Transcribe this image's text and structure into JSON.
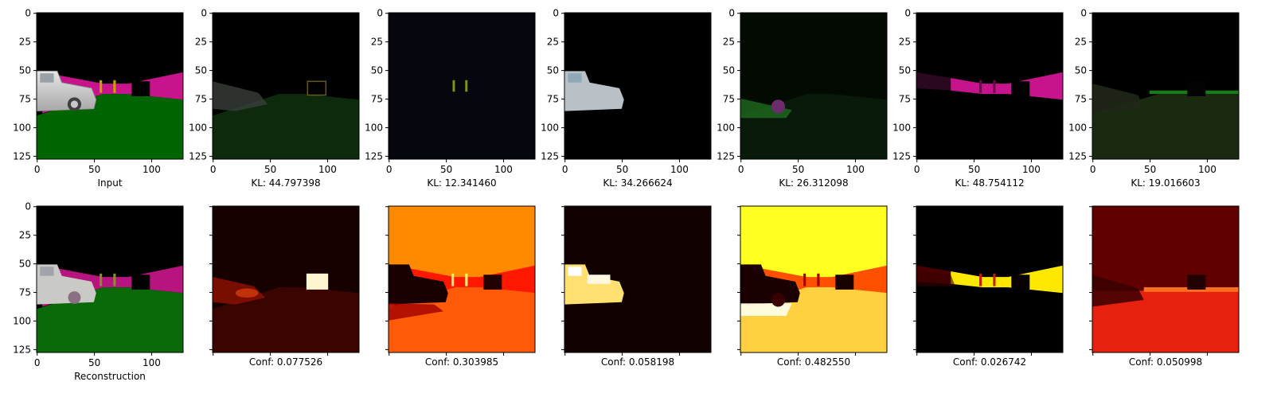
{
  "tick_values": [
    "0",
    "25",
    "50",
    "75",
    "100",
    "125"
  ],
  "x_tick_values": [
    "0",
    "50",
    "100"
  ],
  "top_row": [
    {
      "caption": "Input",
      "scene": "input"
    },
    {
      "caption": "KL: 44.797398",
      "scene": "slot1"
    },
    {
      "caption": "KL: 12.341460",
      "scene": "slot2"
    },
    {
      "caption": "KL: 34.266624",
      "scene": "slot3"
    },
    {
      "caption": "KL: 26.312098",
      "scene": "slot4"
    },
    {
      "caption": "KL: 48.754112",
      "scene": "slot5"
    },
    {
      "caption": "KL: 19.016603",
      "scene": "slot6"
    }
  ],
  "bottom_row": [
    {
      "caption": "Reconstruction",
      "scene": "recon"
    },
    {
      "caption": "Conf: 0.077526",
      "scene": "conf1"
    },
    {
      "caption": "Conf: 0.303985",
      "scene": "conf2"
    },
    {
      "caption": "Conf: 0.058198",
      "scene": "conf3"
    },
    {
      "caption": "Conf: 0.482550",
      "scene": "conf4"
    },
    {
      "caption": "Conf: 0.026742",
      "scene": "conf5"
    },
    {
      "caption": "Conf: 0.050998",
      "scene": "conf6"
    }
  ],
  "colors": {
    "magenta_wall": "#c8148c",
    "green_floor": "#006400",
    "truck_white": "#d2d2d2",
    "background": "#000000"
  }
}
